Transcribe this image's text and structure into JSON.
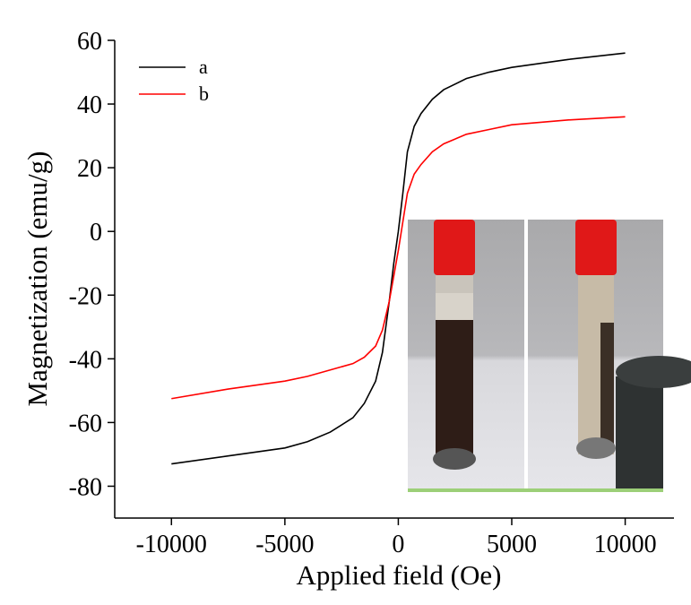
{
  "chart_data": {
    "type": "line",
    "xlabel": "Applied field (Oe)",
    "ylabel": "Magnetization (emu/g)",
    "x": [
      -10000,
      -7500,
      -5000,
      -4000,
      -3000,
      -2000,
      -1500,
      -1000,
      -700,
      -400,
      -200,
      0,
      200,
      400,
      700,
      1000,
      1500,
      2000,
      3000,
      4000,
      5000,
      7500,
      10000
    ],
    "series": [
      {
        "name": "a",
        "color": "#000000",
        "values": [
          -73,
          -70.5,
          -68,
          -66,
          -63,
          -58.5,
          -54,
          -47,
          -38,
          -22,
          -10,
          0,
          12,
          25,
          33,
          37,
          41.5,
          44.5,
          48,
          50,
          51.5,
          54,
          56
        ]
      },
      {
        "name": "b",
        "color": "#ff0000",
        "values": [
          -52.5,
          -49.5,
          -47,
          -45.5,
          -43.5,
          -41.5,
          -39.5,
          -36,
          -31,
          -22,
          -14,
          -6,
          3,
          12,
          18,
          21,
          25,
          27.5,
          30.5,
          32,
          33.5,
          35,
          36
        ]
      }
    ],
    "xlim": [
      -12500,
      12150
    ],
    "ylim": [
      -90,
      60
    ],
    "xticks": [
      -10000,
      -5000,
      0,
      5000,
      10000
    ],
    "yticks": [
      -80,
      -60,
      -40,
      -20,
      0,
      20,
      40,
      60
    ],
    "legend": "upper left"
  }
}
